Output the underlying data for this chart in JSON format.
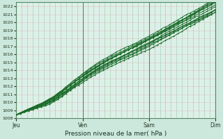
{
  "title": "",
  "xlabel": "Pression niveau de la mer( hPa )",
  "ylabel": "",
  "bg_color": "#cce8dc",
  "plot_bg_color": "#ddf0e8",
  "grid_color_h": "#e8c8cc",
  "grid_color_v": "#99ccaa",
  "line_color": "#1a6b2a",
  "ylim": [
    1008,
    1022.5
  ],
  "ytick_max": 1022,
  "yticks": [
    1008,
    1009,
    1010,
    1011,
    1012,
    1013,
    1014,
    1015,
    1016,
    1017,
    1018,
    1019,
    1020,
    1021,
    1022
  ],
  "xtick_labels": [
    "Jeu",
    "Ven",
    "Sam",
    "Dim"
  ],
  "xtick_positions": [
    0,
    96,
    192,
    288
  ],
  "x_total": 288
}
